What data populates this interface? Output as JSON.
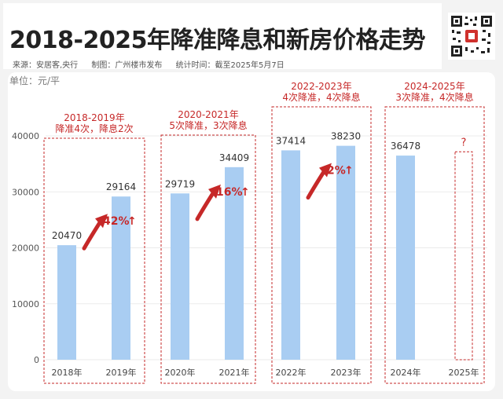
{
  "header": {
    "title": "2018-2025年降准降息和新房价格走势",
    "source": "来源：安居客,央行",
    "producer": "制图：广州楼市发布",
    "stat_time": "统计时间：截至2025年5月7日"
  },
  "qr_code": {
    "icon": "qr-code-icon",
    "badge_color": "#d0312d"
  },
  "chart_data": {
    "type": "bar",
    "title": "2018-2025年降准降息和新房价格走势",
    "ylabel": "单位：元/平",
    "xlabel": "",
    "categories": [
      "2018年",
      "2019年",
      "2020年",
      "2021年",
      "2022年",
      "2023年",
      "2024年",
      "2025年"
    ],
    "values": [
      20470,
      29164,
      29719,
      34409,
      37414,
      38230,
      36478,
      null
    ],
    "unknown_label": "?",
    "ylim": [
      0,
      40000
    ],
    "yticks": [
      0,
      10000,
      20000,
      30000,
      40000
    ],
    "grid": true,
    "bar_color": "#a9cdf2",
    "accent_color": "#c62828",
    "groups": [
      {
        "period": "2018-2019年",
        "policy": "降准4次，降息2次",
        "change": "42%",
        "categories": [
          "2018年",
          "2019年"
        ]
      },
      {
        "period": "2020-2021年",
        "policy": "5次降准，3次降息",
        "change": "16%",
        "categories": [
          "2020年",
          "2021年"
        ]
      },
      {
        "period": "2022-2023年",
        "policy": "4次降准，4次降息",
        "change": "2%",
        "categories": [
          "2022年",
          "2023年"
        ]
      },
      {
        "period": "2024-2025年",
        "policy": "3次降准，4次降息",
        "change": "",
        "categories": [
          "2024年",
          "2025年"
        ]
      }
    ]
  }
}
